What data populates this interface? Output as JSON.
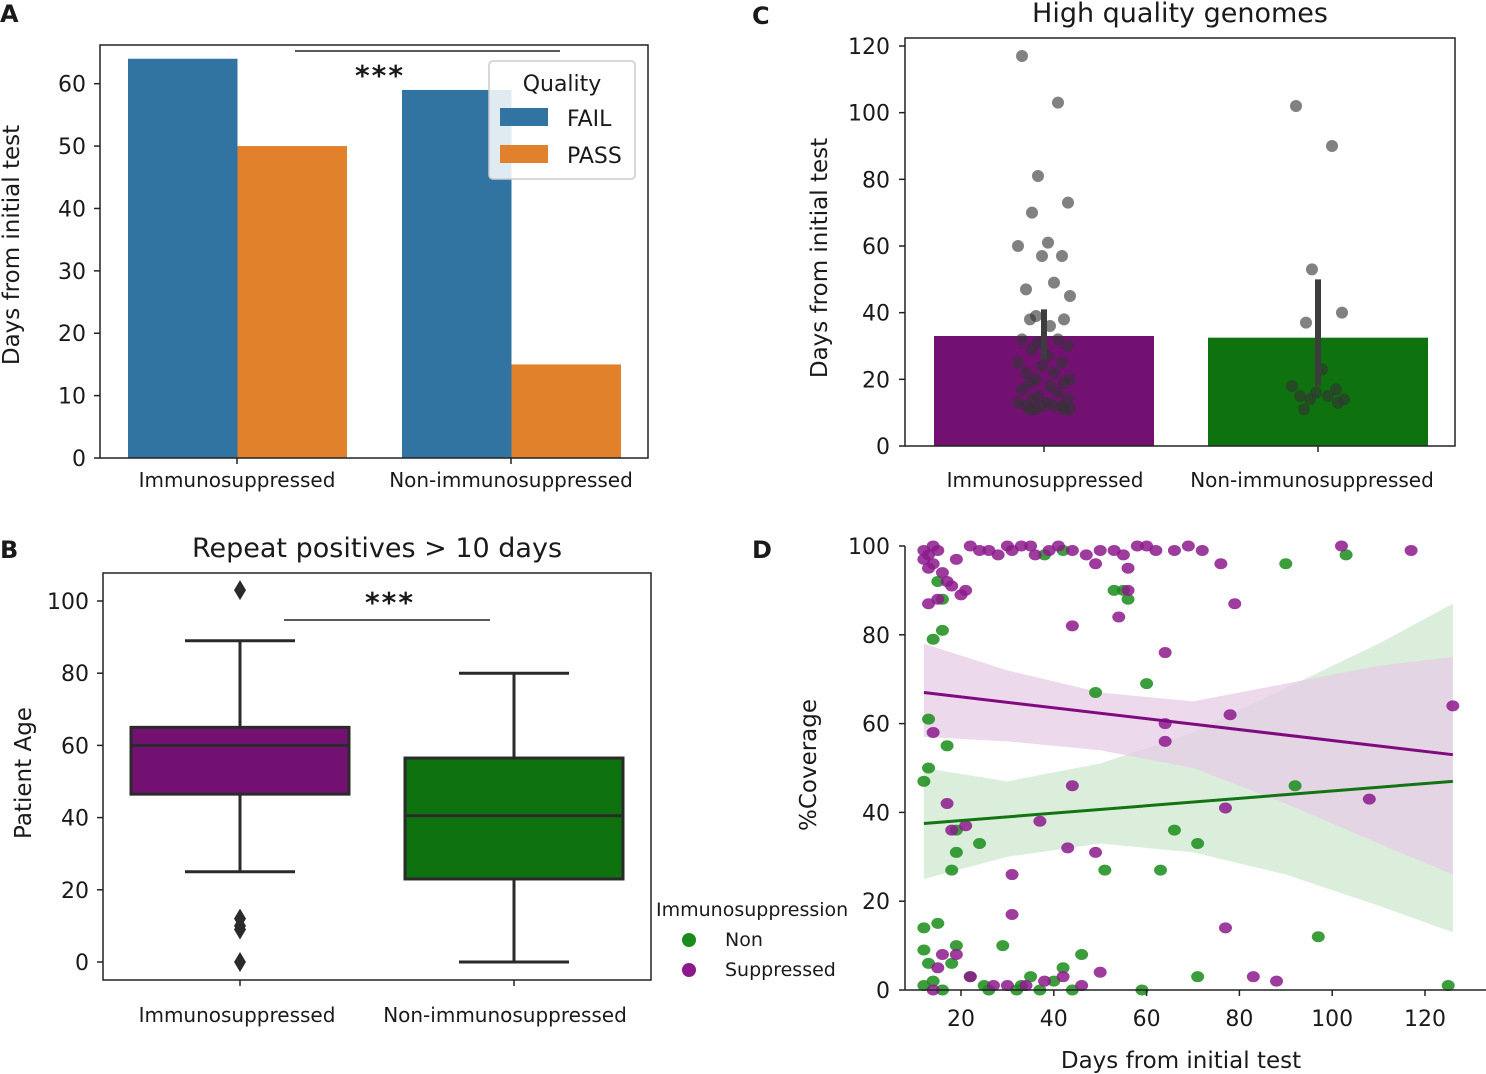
{
  "chart_data": [
    {
      "panel": "A",
      "type": "bar",
      "title": "",
      "xlabel": "",
      "ylabel": "Days from initial test",
      "ylim": [
        0,
        65
      ],
      "yticks": [
        "0",
        "10",
        "20",
        "30",
        "40",
        "50",
        "60"
      ],
      "categories": [
        "Immunosuppressed",
        "Non-immunosuppressed"
      ],
      "series": [
        {
          "name": "FAIL",
          "color": "#3274a1",
          "values": [
            64,
            59
          ]
        },
        {
          "name": "PASS",
          "color": "#e1812c",
          "values": [
            50,
            15
          ]
        }
      ],
      "legend": {
        "title": "Quality",
        "placement": "top-right",
        "entries": [
          "FAIL",
          "PASS"
        ]
      },
      "annotation": "***"
    },
    {
      "panel": "B",
      "type": "box",
      "title": "Repeat positives > 10 days",
      "xlabel": "",
      "ylabel": "Patient Age",
      "ylim": [
        -5,
        108
      ],
      "yticks": [
        "0",
        "20",
        "40",
        "60",
        "80",
        "100"
      ],
      "categories": [
        "Immunosuppressed",
        "Non-immunosuppressed"
      ],
      "boxes": [
        {
          "name": "Immunosuppressed",
          "color": "#731173",
          "whisker_low": 25,
          "q1": 46.5,
          "median": 60,
          "q3": 65,
          "whisker_high": 89,
          "outliers": [
            103,
            12,
            10,
            9,
            0
          ]
        },
        {
          "name": "Non-immunosuppressed",
          "color": "#0e720e",
          "whisker_low": 0,
          "q1": 23,
          "median": 40.5,
          "q3": 56.5,
          "whisker_high": 80,
          "outliers": []
        }
      ],
      "annotation": "***"
    },
    {
      "panel": "C",
      "type": "bar",
      "title": "High quality genomes",
      "xlabel": "",
      "ylabel": "Days from initial test",
      "ylim": [
        0,
        122
      ],
      "yticks": [
        "0",
        "20",
        "40",
        "60",
        "80",
        "100",
        "120"
      ],
      "categories": [
        "Immunosuppressed",
        "Non-immunosuppressed"
      ],
      "series": [
        {
          "name": "mean",
          "values": [
            33,
            32.5
          ],
          "colors": [
            "#731173",
            "#0e720e"
          ],
          "ci_low": [
            26,
            18
          ],
          "ci_high": [
            41,
            50
          ]
        }
      ],
      "points": [
        {
          "category": "Immunosuppressed",
          "values": [
            117,
            103,
            81,
            73,
            70,
            61,
            60,
            57,
            57,
            49,
            47,
            45,
            39,
            38,
            38,
            36,
            32,
            32,
            31,
            30,
            29,
            27,
            25,
            25,
            24,
            22,
            22,
            20,
            20,
            19,
            19,
            18,
            17,
            16,
            15,
            14,
            14,
            13,
            13,
            12,
            12,
            12,
            12,
            11,
            11,
            11,
            11
          ]
        },
        {
          "category": "Non-immunosuppressed",
          "values": [
            102,
            90,
            53,
            40,
            37,
            23,
            18,
            17,
            16,
            15,
            15,
            14,
            14,
            13,
            11
          ]
        }
      ]
    },
    {
      "panel": "D",
      "type": "scatter",
      "title": "",
      "xlabel": "Days from initial test",
      "ylabel": "%Coverage",
      "xlim": [
        5,
        128
      ],
      "ylim": [
        0,
        100
      ],
      "xticks": [
        "20",
        "40",
        "60",
        "80",
        "100",
        "120"
      ],
      "yticks": [
        "0",
        "20",
        "40",
        "60",
        "80",
        "100"
      ],
      "legend": {
        "title": "Immunosuppression",
        "placement": "lower-left-outside",
        "entries": [
          "Non",
          "Suppressed"
        ]
      },
      "series": [
        {
          "name": "Non",
          "color": "#1a8c1a",
          "points": [
            [
              13,
              61
            ],
            [
              13,
              50
            ],
            [
              12,
              47
            ],
            [
              14,
              79
            ],
            [
              15,
              92
            ],
            [
              16,
              81
            ],
            [
              16,
              88
            ],
            [
              17,
              55
            ],
            [
              18,
              27
            ],
            [
              19,
              31
            ],
            [
              19,
              36
            ],
            [
              24,
              33
            ],
            [
              49,
              67
            ],
            [
              55,
              90
            ],
            [
              53,
              90
            ],
            [
              56,
              88
            ],
            [
              60,
              69
            ],
            [
              66,
              36
            ],
            [
              63,
              27
            ],
            [
              51,
              27
            ],
            [
              71,
              33
            ],
            [
              92,
              46
            ],
            [
              90,
              96
            ],
            [
              103,
              98
            ],
            [
              97,
              12
            ],
            [
              125,
              1
            ],
            [
              38,
              98
            ],
            [
              42,
              99
            ],
            [
              12,
              14
            ],
            [
              15,
              15
            ],
            [
              12,
              9
            ],
            [
              13,
              6
            ],
            [
              19,
              10
            ],
            [
              18,
              6
            ],
            [
              22,
              3
            ],
            [
              25,
              1
            ],
            [
              29,
              10
            ],
            [
              33,
              1
            ],
            [
              35,
              3
            ],
            [
              42,
              5
            ],
            [
              46,
              8
            ],
            [
              40,
              2
            ],
            [
              59,
              0
            ],
            [
              71,
              3
            ],
            [
              12,
              1
            ],
            [
              16,
              0
            ],
            [
              26,
              0
            ],
            [
              32,
              0
            ],
            [
              37,
              0
            ],
            [
              44,
              0
            ],
            [
              14,
              2
            ]
          ]
        },
        {
          "name": "Suppressed",
          "color": "#8c1a8c",
          "points": [
            [
              12,
              99
            ],
            [
              13,
              98
            ],
            [
              14,
              100
            ],
            [
              15,
              99
            ],
            [
              12,
              97
            ],
            [
              13,
              95
            ],
            [
              14,
              96
            ],
            [
              16,
              94
            ],
            [
              17,
              92
            ],
            [
              18,
              91
            ],
            [
              20,
              89
            ],
            [
              21,
              90
            ],
            [
              19,
              97
            ],
            [
              22,
              100
            ],
            [
              24,
              99
            ],
            [
              26,
              99
            ],
            [
              28,
              98
            ],
            [
              30,
              100
            ],
            [
              31,
              99
            ],
            [
              33,
              100
            ],
            [
              35,
              100
            ],
            [
              36,
              98
            ],
            [
              39,
              99
            ],
            [
              41,
              100
            ],
            [
              44,
              99
            ],
            [
              47,
              98
            ],
            [
              49,
              96
            ],
            [
              50,
              99
            ],
            [
              53,
              99
            ],
            [
              55,
              98
            ],
            [
              56,
              95
            ],
            [
              58,
              100
            ],
            [
              60,
              100
            ],
            [
              62,
              99
            ],
            [
              66,
              99
            ],
            [
              69,
              100
            ],
            [
              72,
              99
            ],
            [
              76,
              96
            ],
            [
              79,
              87
            ],
            [
              102,
              100
            ],
            [
              117,
              99
            ],
            [
              13,
              87
            ],
            [
              15,
              88
            ],
            [
              14,
              58
            ],
            [
              17,
              42
            ],
            [
              18,
              36
            ],
            [
              21,
              37
            ],
            [
              31,
              26
            ],
            [
              31,
              17
            ],
            [
              37,
              38
            ],
            [
              43,
              32
            ],
            [
              44,
              46
            ],
            [
              49,
              31
            ],
            [
              64,
              60
            ],
            [
              64,
              56
            ],
            [
              64,
              76
            ],
            [
              77,
              41
            ],
            [
              78,
              62
            ],
            [
              77,
              14
            ],
            [
              108,
              43
            ],
            [
              126,
              64
            ],
            [
              44,
              82
            ],
            [
              54,
              84
            ],
            [
              56,
              90
            ],
            [
              15,
              5
            ],
            [
              16,
              8
            ],
            [
              19,
              8
            ],
            [
              22,
              3
            ],
            [
              27,
              1
            ],
            [
              30,
              1
            ],
            [
              34,
              1
            ],
            [
              38,
              2
            ],
            [
              42,
              3
            ],
            [
              46,
              1
            ],
            [
              50,
              4
            ],
            [
              83,
              3
            ],
            [
              88,
              2
            ],
            [
              14,
              0
            ]
          ]
        }
      ],
      "fits": [
        {
          "name": "Non",
          "color": "#137413",
          "band": "#cfe8cf",
          "start": [
            12,
            37.5
          ],
          "end": [
            126,
            47
          ],
          "ci_upper": [
            [
              12,
              50
            ],
            [
              30,
              47
            ],
            [
              50,
              51
            ],
            [
              70,
              58
            ],
            [
              90,
              68
            ],
            [
              110,
              78
            ],
            [
              126,
              87
            ]
          ],
          "ci_lower": [
            [
              12,
              25
            ],
            [
              30,
              30
            ],
            [
              50,
              33
            ],
            [
              70,
              31
            ],
            [
              90,
              26
            ],
            [
              110,
              19
            ],
            [
              126,
              13
            ]
          ]
        },
        {
          "name": "Suppressed",
          "color": "#800a80",
          "band": "#e6cce6",
          "start": [
            12,
            67
          ],
          "end": [
            126,
            53
          ],
          "ci_upper": [
            [
              12,
              78
            ],
            [
              30,
              72
            ],
            [
              50,
              67
            ],
            [
              70,
              65
            ],
            [
              90,
              69
            ],
            [
              110,
              73
            ],
            [
              126,
              75
            ]
          ],
          "ci_lower": [
            [
              12,
              57
            ],
            [
              30,
              56
            ],
            [
              50,
              54
            ],
            [
              70,
              50
            ],
            [
              90,
              42
            ],
            [
              110,
              33
            ],
            [
              126,
              26
            ]
          ]
        }
      ]
    }
  ]
}
